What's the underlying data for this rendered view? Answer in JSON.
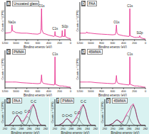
{
  "chart_data": [
    {
      "type": "line",
      "panel_label": "a",
      "title": "Uncoated glass",
      "x_label": "Binding energy (eV)",
      "y_label": "Counts s⁻¹(CPS)",
      "x": [
        1200,
        1100,
        1080,
        1072,
        1064,
        1000,
        900,
        800,
        700,
        600,
        550,
        540,
        531,
        522,
        500,
        400,
        300,
        290,
        285,
        280,
        200,
        160,
        153,
        146,
        110,
        103,
        96,
        50,
        0
      ],
      "xlim": [
        0,
        1200
      ],
      "xticks": [
        0,
        200,
        400,
        600,
        800,
        1000,
        1200
      ],
      "ylim": [
        0,
        115
      ],
      "tick_labels": "x",
      "series": [
        {
          "color": "#e8318f",
          "values": [
            20,
            22,
            25,
            45,
            28,
            22,
            20,
            20,
            18,
            17,
            20,
            35,
            95,
            30,
            20,
            14,
            10,
            12,
            25,
            12,
            8,
            9,
            28,
            10,
            10,
            32,
            10,
            5,
            3
          ]
        }
      ],
      "annotations": [
        {
          "text": "Na1s",
          "x": 1072,
          "y": 45
        },
        {
          "text": "O1s",
          "x": 531,
          "y": 95
        },
        {
          "text": "C1s",
          "x": 285,
          "y": 25
        },
        {
          "text": "Si2p",
          "x": 103,
          "y": 32
        }
      ]
    },
    {
      "type": "line",
      "panel_label": "b",
      "title": "PAA",
      "x_label": "Binding energy (eV)",
      "y_label": "Counts s⁻¹(CPS)",
      "x": [
        1200,
        1100,
        1080,
        1072,
        1064,
        1000,
        900,
        800,
        700,
        600,
        550,
        540,
        531,
        522,
        500,
        400,
        300,
        290,
        285,
        280,
        200,
        160,
        153,
        146,
        110,
        103,
        96,
        50,
        0
      ],
      "xlim": [
        0,
        1200
      ],
      "xticks": [
        0,
        200,
        400,
        600,
        800,
        1000,
        1200
      ],
      "ylim": [
        0,
        115
      ],
      "tick_labels": "x",
      "series": [
        {
          "color": "#e8318f",
          "values": [
            20,
            20,
            21,
            24,
            21,
            20,
            18,
            17,
            16,
            15,
            16,
            25,
            45,
            22,
            16,
            12,
            10,
            14,
            95,
            12,
            7,
            7,
            8,
            7,
            8,
            12,
            7,
            4,
            2
          ]
        }
      ],
      "annotations": [
        {
          "text": "O1s",
          "x": 531,
          "y": 45
        },
        {
          "text": "C1s",
          "x": 285,
          "y": 95
        },
        {
          "text": "Si2p",
          "x": 103,
          "y": 12
        }
      ]
    },
    {
      "type": "line",
      "panel_label": "c",
      "title": "PMMA",
      "x_label": "Binding energy (eV)",
      "y_label": "Counts s⁻¹(CPS)",
      "x": [
        1200,
        1100,
        1080,
        1072,
        1064,
        1000,
        900,
        800,
        700,
        600,
        550,
        540,
        531,
        522,
        500,
        400,
        300,
        290,
        285,
        280,
        200,
        160,
        153,
        146,
        110,
        103,
        96,
        50,
        0
      ],
      "xlim": [
        0,
        1200
      ],
      "xticks": [
        0,
        200,
        400,
        600,
        800,
        1000,
        1200
      ],
      "ylim": [
        0,
        115
      ],
      "tick_labels": "x",
      "series": [
        {
          "color": "#e8318f",
          "values": [
            18,
            18,
            18,
            18,
            18,
            18,
            16,
            15,
            14,
            13,
            14,
            22,
            40,
            20,
            14,
            11,
            9,
            13,
            95,
            11,
            6,
            6,
            6,
            6,
            5,
            5,
            5,
            3,
            2
          ]
        }
      ],
      "annotations": [
        {
          "text": "C1s",
          "x": 285,
          "y": 95
        }
      ]
    },
    {
      "type": "line",
      "panel_label": "d",
      "title": "45MMA",
      "x_label": "Binding energy (eV)",
      "y_label": "Counts s⁻¹(CPS)",
      "x": [
        1200,
        1100,
        1080,
        1072,
        1064,
        1000,
        900,
        800,
        700,
        600,
        550,
        540,
        531,
        522,
        500,
        400,
        300,
        290,
        285,
        280,
        200,
        160,
        153,
        146,
        110,
        103,
        96,
        50,
        0
      ],
      "xlim": [
        0,
        1200
      ],
      "xticks": [
        0,
        200,
        400,
        600,
        800,
        1000,
        1200
      ],
      "ylim": [
        0,
        115
      ],
      "tick_labels": "x",
      "series": [
        {
          "color": "#e8318f",
          "values": [
            18,
            18,
            18,
            18,
            18,
            18,
            16,
            15,
            14,
            13,
            14,
            22,
            38,
            20,
            14,
            11,
            9,
            13,
            95,
            11,
            6,
            6,
            6,
            6,
            5,
            5,
            5,
            3,
            2
          ]
        }
      ],
      "annotations": [
        {
          "text": "C1s",
          "x": 285,
          "y": 95
        }
      ]
    },
    {
      "type": "line",
      "panel_label": "e",
      "title": "PAA",
      "x_label": "Binding energy (eV)",
      "y_label": "Counts s⁻¹(CPS)",
      "x": [
        292,
        291,
        290,
        289.5,
        289,
        288.5,
        288,
        287.5,
        287,
        286.5,
        286,
        285.5,
        285,
        284.5,
        284,
        283.5,
        283,
        282
      ],
      "xlim": [
        282,
        292
      ],
      "xticks": [
        282,
        284,
        286,
        288,
        290,
        292
      ],
      "ylim": [
        0,
        115
      ],
      "tick_labels": "x",
      "series": [
        {
          "color": "#e8318f",
          "values": [
            0,
            1,
            16,
            35,
            45,
            36,
            20,
            19,
            33,
            49,
            63,
            84,
            94,
            71,
            32,
            9,
            1,
            0
          ]
        },
        {
          "color": "#444444",
          "values": [
            0,
            0,
            0,
            0,
            0,
            0,
            0,
            0,
            1,
            9,
            32,
            70,
            90,
            70,
            32,
            9,
            1,
            0
          ]
        },
        {
          "color": "#666666",
          "values": [
            0,
            0,
            0,
            0,
            0,
            1,
            4,
            14,
            31,
            40,
            31,
            14,
            4,
            1,
            0,
            0,
            0,
            0
          ]
        },
        {
          "color": "#222222",
          "values": [
            0,
            1,
            16,
            35,
            45,
            35,
            16,
            5,
            1,
            0,
            0,
            0,
            0,
            0,
            0,
            0,
            0,
            0
          ]
        }
      ],
      "annotations": [
        {
          "text": "C-C",
          "x": 285,
          "y": 94
        },
        {
          "text": "C-O",
          "x": 286.5,
          "y": 49
        },
        {
          "text": "O-C=O",
          "x": 289,
          "y": 45
        }
      ]
    },
    {
      "type": "line",
      "panel_label": "f",
      "title": "PMMA",
      "x_label": "Binding energy (eV)",
      "y_label": "Counts s⁻¹(CPS)",
      "x": [
        292,
        291,
        290,
        289.5,
        289,
        288.5,
        288,
        287.5,
        287,
        286.5,
        286,
        285.5,
        285,
        284.5,
        284,
        283.5,
        283,
        282
      ],
      "xlim": [
        282,
        292
      ],
      "xticks": [
        282,
        284,
        286,
        288,
        290,
        292
      ],
      "ylim": [
        0,
        115
      ],
      "tick_labels": "x",
      "series": [
        {
          "color": "#e8318f",
          "values": [
            0,
            1,
            11,
            23,
            30,
            24,
            14,
            15,
            29,
            44,
            59,
            82,
            93,
            71,
            32,
            9,
            1,
            0
          ]
        },
        {
          "color": "#444444",
          "values": [
            0,
            0,
            0,
            0,
            0,
            0,
            0,
            0,
            1,
            9,
            32,
            70,
            90,
            70,
            32,
            9,
            1,
            0
          ]
        },
        {
          "color": "#666666",
          "values": [
            0,
            0,
            0,
            0,
            0,
            1,
            3,
            12,
            27,
            35,
            27,
            12,
            3,
            1,
            0,
            0,
            0,
            0
          ]
        },
        {
          "color": "#222222",
          "values": [
            0,
            1,
            11,
            23,
            30,
            23,
            11,
            3,
            1,
            0,
            0,
            0,
            0,
            0,
            0,
            0,
            0,
            0
          ]
        }
      ],
      "annotations": [
        {
          "text": "C-C",
          "x": 285,
          "y": 93
        },
        {
          "text": "C-O",
          "x": 286.5,
          "y": 44
        },
        {
          "text": "O-C=O",
          "x": 289,
          "y": 30
        }
      ]
    },
    {
      "type": "line",
      "panel_label": "g",
      "title": "45MMA",
      "x_label": "Binding energy (eV)",
      "y_label": "Counts s⁻¹(CPS)",
      "x": [
        292,
        291,
        290,
        289.5,
        289,
        288.5,
        288,
        287.5,
        287,
        286.5,
        286,
        285.5,
        285,
        284.5,
        284,
        283.5,
        283,
        282
      ],
      "xlim": [
        282,
        292
      ],
      "xticks": [
        282,
        284,
        286,
        288,
        290,
        292
      ],
      "ylim": [
        0,
        115
      ],
      "tick_labels": "x",
      "series": [
        {
          "color": "#e8318f",
          "values": [
            0,
            1,
            9,
            19,
            25,
            20,
            14,
            19,
            37,
            54,
            67,
            86,
            95,
            71,
            32,
            9,
            1,
            0
          ]
        },
        {
          "color": "#444444",
          "values": [
            0,
            0,
            0,
            0,
            0,
            0,
            0,
            0,
            1,
            9,
            32,
            70,
            90,
            70,
            32,
            9,
            1,
            0
          ]
        },
        {
          "color": "#666666",
          "values": [
            0,
            0,
            0,
            0,
            0,
            1,
            5,
            16,
            35,
            45,
            35,
            16,
            5,
            1,
            0,
            0,
            0,
            0
          ]
        },
        {
          "color": "#222222",
          "values": [
            0,
            1,
            9,
            19,
            25,
            19,
            9,
            3,
            1,
            0,
            0,
            0,
            0,
            0,
            0,
            0,
            0,
            0
          ]
        }
      ],
      "annotations": []
    }
  ]
}
